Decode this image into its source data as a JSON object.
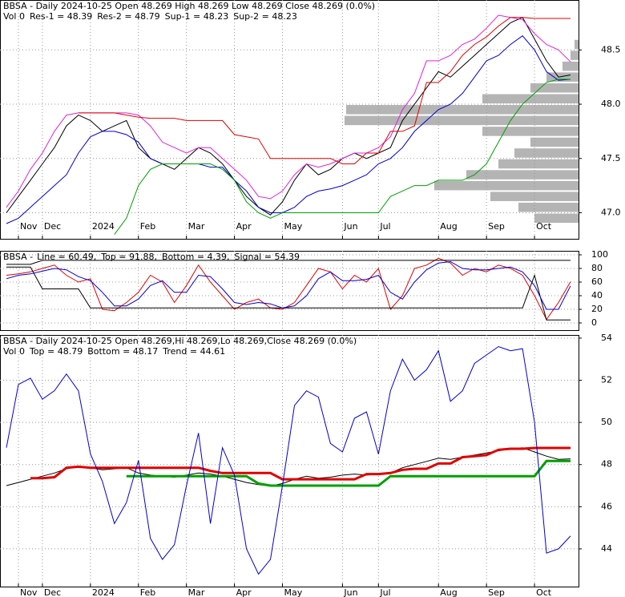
{
  "chart_data": [
    {
      "type": "line",
      "title": "BBSA - Daily 2024-10-25 Open 48.269  High 48.269  Low 48.269  Close 48.269 (0.0%)",
      "subtitle": "Vol 0",
      "categories": [
        null,
        "Nov",
        null,
        "Dec",
        null,
        null,
        null,
        "2024",
        null,
        null,
        null,
        "Feb",
        null,
        null,
        null,
        "Mar",
        null,
        null,
        null,
        "Apr",
        null,
        null,
        null,
        "May",
        null,
        null,
        null,
        null,
        "Jun",
        null,
        null,
        "Jul",
        null,
        null,
        null,
        null,
        "Aug",
        null,
        null,
        null,
        "Sep",
        null,
        null,
        null,
        "Oct",
        null,
        null,
        null
      ],
      "ylim": [
        46.76,
        48.96
      ],
      "yticks": [
        {
          "value": 47,
          "label": "47.0"
        },
        47.5,
        {
          "value": 48,
          "label": "48.0"
        },
        48.5
      ],
      "grid": true,
      "series": [
        {
          "color": "#000000",
          "line_width": 1,
          "values": [
            47.0,
            47.15,
            47.3,
            47.45,
            47.6,
            47.8,
            47.9,
            47.85,
            47.75,
            47.8,
            47.85,
            47.6,
            47.5,
            47.45,
            47.4,
            47.5,
            47.6,
            47.55,
            47.45,
            47.3,
            47.15,
            47.05,
            46.98,
            47.1,
            47.3,
            47.45,
            47.35,
            47.4,
            47.5,
            47.55,
            47.5,
            47.55,
            47.6,
            47.85,
            48.0,
            48.15,
            48.3,
            48.25,
            48.35,
            48.45,
            48.55,
            48.65,
            48.75,
            48.8,
            48.6,
            48.4,
            48.25,
            48.27
          ]
        },
        {
          "name": "Res-1 = 48.39",
          "color": "#e020e0",
          "line_width": 1,
          "values": [
            47.05,
            47.2,
            47.4,
            47.55,
            47.75,
            47.9,
            47.92,
            47.92,
            47.92,
            47.92,
            47.92,
            47.9,
            47.8,
            47.65,
            47.6,
            47.55,
            47.6,
            47.6,
            47.5,
            47.4,
            47.3,
            47.15,
            47.13,
            47.2,
            47.35,
            47.45,
            47.42,
            47.45,
            47.5,
            47.55,
            47.55,
            47.6,
            47.7,
            47.95,
            48.1,
            48.4,
            48.4,
            48.45,
            48.55,
            48.6,
            48.7,
            48.82,
            48.8,
            48.78,
            48.65,
            48.55,
            48.5,
            48.39
          ]
        },
        {
          "name": "Res-2 = 48.79",
          "color": "#e00000",
          "line_width": 1,
          "values": [
            null,
            null,
            null,
            null,
            null,
            null,
            47.92,
            47.92,
            47.92,
            47.92,
            47.9,
            47.88,
            47.87,
            47.87,
            47.87,
            47.85,
            47.85,
            47.85,
            47.85,
            47.72,
            47.7,
            47.68,
            47.5,
            47.5,
            47.5,
            47.5,
            47.5,
            47.5,
            47.45,
            47.45,
            47.55,
            47.55,
            47.75,
            47.75,
            47.8,
            48.2,
            48.2,
            48.3,
            48.45,
            48.55,
            48.62,
            48.72,
            48.8,
            48.8,
            48.79,
            48.79,
            48.79,
            48.79
          ]
        },
        {
          "name": "Sup-1 = 48.23",
          "color": "#0000d0",
          "line_width": 1,
          "values": [
            46.9,
            46.95,
            47.05,
            47.15,
            47.25,
            47.35,
            47.55,
            47.7,
            47.75,
            47.75,
            47.72,
            47.65,
            47.5,
            47.45,
            47.45,
            47.45,
            47.45,
            47.42,
            47.42,
            47.3,
            47.2,
            47.05,
            47.0,
            47.0,
            47.05,
            47.15,
            47.2,
            47.22,
            47.25,
            47.3,
            47.35,
            47.45,
            47.5,
            47.6,
            47.75,
            47.85,
            47.95,
            48.0,
            48.1,
            48.25,
            48.4,
            48.45,
            48.55,
            48.63,
            48.5,
            48.3,
            48.22,
            48.23
          ]
        },
        {
          "name": "Sup-2 = 48.23",
          "color": "#00a000",
          "line_width": 1,
          "values": [
            null,
            null,
            null,
            null,
            null,
            null,
            null,
            null,
            null,
            46.8,
            46.95,
            47.25,
            47.4,
            47.45,
            47.45,
            47.45,
            47.45,
            47.45,
            47.4,
            47.3,
            47.1,
            47.0,
            46.95,
            47.0,
            47.0,
            47.0,
            47.0,
            47.0,
            47.0,
            47.0,
            47.0,
            47.0,
            47.15,
            47.2,
            47.25,
            47.25,
            47.3,
            47.3,
            47.3,
            47.35,
            47.45,
            47.65,
            47.85,
            48.0,
            48.1,
            48.2,
            48.23,
            48.23
          ]
        }
      ],
      "volume_profile": {
        "color": "#b4b4b4",
        "xlim": [
          0,
          300
        ],
        "levels": [
          46.95,
          47.05,
          47.15,
          47.25,
          47.35,
          47.45,
          47.55,
          47.65,
          47.75,
          47.85,
          47.95,
          48.05,
          48.15,
          48.25,
          48.35,
          48.45,
          48.55
        ],
        "values": [
          55,
          75,
          110,
          180,
          140,
          100,
          80,
          60,
          120,
          292,
          290,
          120,
          60,
          40,
          20,
          10,
          5
        ]
      }
    },
    {
      "type": "line",
      "title": "BBSA -",
      "ylim": [
        -10.6,
        105.9
      ],
      "yticks": [
        0,
        20,
        40,
        60,
        80,
        100
      ],
      "grid": true,
      "series": [
        {
          "name": "Line = 60.49,",
          "color": "#e00000",
          "line_width": 1,
          "values": [
            70,
            72,
            75,
            80,
            85,
            70,
            60,
            65,
            20,
            18,
            30,
            45,
            70,
            60,
            30,
            55,
            85,
            60,
            40,
            20,
            30,
            35,
            22,
            20,
            30,
            55,
            80,
            75,
            50,
            70,
            60,
            80,
            20,
            40,
            80,
            85,
            95,
            88,
            70,
            80,
            75,
            85,
            80,
            70,
            40,
            5,
            30,
            60.49
          ]
        },
        {
          "name": "Top = 91.88,",
          "color": "#000000",
          "line_width": 1,
          "values": [
            86,
            86,
            86,
            91.88,
            91.88,
            91.88,
            91.88,
            91.88,
            91.88,
            91.88,
            91.88,
            91.88,
            91.88,
            91.88,
            91.88,
            91.88,
            91.88,
            91.88,
            91.88,
            91.88,
            91.88,
            91.88,
            91.88,
            91.88,
            91.88,
            91.88,
            91.88,
            91.88,
            91.88,
            91.88,
            91.88,
            91.88,
            91.88,
            91.88,
            91.88,
            91.88,
            91.88,
            91.88,
            91.88,
            91.88,
            91.88,
            91.88,
            91.88,
            91.88,
            91.88,
            91.88,
            91.88,
            91.88
          ]
        },
        {
          "name": "Bottom = 4.39,",
          "color": "#000000",
          "line_width": 1,
          "values": [
            82,
            82,
            82,
            50,
            50,
            50,
            50,
            22,
            22,
            22,
            22,
            22,
            22,
            22,
            22,
            22,
            22,
            22,
            22,
            22,
            22,
            22,
            22,
            22,
            22,
            22,
            22,
            22,
            22,
            22,
            22,
            22,
            22,
            22,
            22,
            22,
            22,
            22,
            22,
            22,
            22,
            22,
            22,
            22,
            70,
            4.39,
            4.39,
            4.39
          ]
        },
        {
          "name": "Signal = 54.39",
          "color": "#0000d0",
          "line_width": 1,
          "values": [
            65,
            70,
            72,
            76,
            80,
            78,
            68,
            62,
            45,
            25,
            25,
            35,
            55,
            62,
            45,
            45,
            70,
            68,
            50,
            30,
            27,
            30,
            28,
            22,
            25,
            40,
            65,
            75,
            62,
            62,
            64,
            70,
            45,
            35,
            60,
            78,
            88,
            90,
            80,
            78,
            78,
            80,
            82,
            75,
            55,
            20,
            20,
            54.39
          ]
        }
      ]
    },
    {
      "type": "line",
      "title": "BBSA - Daily 2024-10-25 Open 48.269,Hi 48.269,Lo 48.269,Close 48.269 (0.0%)",
      "subtitle": "Vol 0",
      "categories": [
        null,
        "Nov",
        null,
        "Dec",
        null,
        null,
        null,
        "2024",
        null,
        null,
        null,
        "Feb",
        null,
        null,
        null,
        "Mar",
        null,
        null,
        null,
        "Apr",
        null,
        null,
        null,
        "May",
        null,
        null,
        null,
        null,
        "Jun",
        null,
        null,
        "Jul",
        null,
        null,
        null,
        null,
        "Aug",
        null,
        null,
        null,
        "Sep",
        null,
        null,
        null,
        "Oct",
        null,
        null,
        null
      ],
      "ylim": [
        42.21,
        54.15
      ],
      "yticks": [
        44,
        46,
        48,
        50,
        52,
        54
      ],
      "grid": true,
      "series": [
        {
          "name": "Top = 48.79",
          "color": "#e00000",
          "line_width": 3,
          "values": [
            null,
            null,
            47.35,
            47.35,
            47.4,
            47.85,
            47.9,
            47.85,
            47.85,
            47.85,
            47.85,
            47.85,
            47.85,
            47.85,
            47.85,
            47.85,
            47.85,
            47.7,
            47.6,
            47.6,
            47.6,
            47.6,
            47.6,
            47.3,
            47.3,
            47.3,
            47.3,
            47.3,
            47.3,
            47.3,
            47.55,
            47.55,
            47.6,
            47.75,
            47.8,
            47.8,
            48.05,
            48.05,
            48.35,
            48.4,
            48.45,
            48.7,
            48.75,
            48.75,
            48.79,
            48.79,
            48.79,
            48.79
          ]
        },
        {
          "name": "Bottom = 48.17",
          "color": "#00a000",
          "line_width": 3,
          "values": [
            null,
            null,
            null,
            null,
            null,
            null,
            null,
            null,
            null,
            null,
            47.45,
            47.45,
            47.45,
            47.45,
            47.45,
            47.45,
            47.45,
            47.45,
            47.45,
            47.45,
            47.45,
            47.1,
            47.0,
            47.0,
            47.0,
            47.0,
            47.0,
            47.0,
            47.0,
            47.0,
            47.0,
            47.0,
            47.45,
            47.45,
            47.45,
            47.45,
            47.45,
            47.45,
            47.45,
            47.45,
            47.45,
            47.45,
            47.45,
            47.45,
            47.45,
            48.17,
            48.17,
            48.17
          ]
        },
        {
          "name": "Trend = 44.61",
          "color": "#0000d0",
          "line_width": 1,
          "values": [
            48.8,
            51.8,
            52.1,
            51.1,
            51.5,
            52.3,
            51.5,
            48.5,
            47.2,
            45.2,
            46.2,
            48.2,
            44.5,
            43.5,
            44.2,
            47.0,
            49.5,
            45.2,
            48.8,
            47.5,
            44.0,
            42.8,
            43.5,
            47.0,
            50.8,
            51.5,
            51.2,
            49.0,
            48.6,
            50.2,
            50.5,
            48.5,
            51.5,
            53.0,
            52.0,
            52.5,
            53.4,
            51.0,
            51.5,
            52.8,
            53.2,
            53.6,
            53.4,
            53.5,
            50.0,
            43.8,
            44.0,
            44.61
          ]
        }
      ]
    }
  ]
}
